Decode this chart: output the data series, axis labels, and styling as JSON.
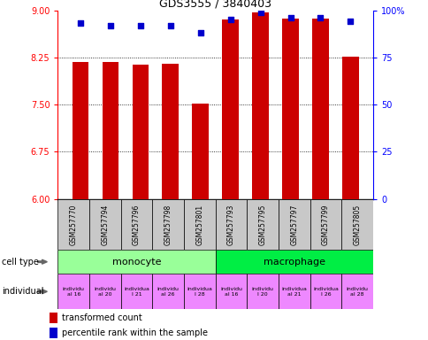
{
  "title": "GDS3555 / 3840403",
  "samples": [
    "GSM257770",
    "GSM257794",
    "GSM257796",
    "GSM257798",
    "GSM257801",
    "GSM257793",
    "GSM257795",
    "GSM257797",
    "GSM257799",
    "GSM257805"
  ],
  "bar_values": [
    8.17,
    8.17,
    8.14,
    8.15,
    7.52,
    8.85,
    8.97,
    8.87,
    8.87,
    8.26
  ],
  "dot_values": [
    93,
    92,
    92,
    92,
    88,
    95,
    99,
    96,
    96,
    94
  ],
  "ylim_left": [
    6,
    9
  ],
  "ylim_right": [
    0,
    100
  ],
  "yticks_left": [
    6,
    6.75,
    7.5,
    8.25,
    9
  ],
  "yticks_right": [
    0,
    25,
    50,
    75,
    100
  ],
  "bar_color": "#cc0000",
  "dot_color": "#0000cc",
  "cell_type_monocyte_color": "#99ff99",
  "cell_type_macrophage_color": "#00ee44",
  "individual_color": "#ee88ff",
  "xlabel_area_color": "#c8c8c8",
  "legend_bar_label": "transformed count",
  "legend_dot_label": "percentile rank within the sample",
  "arrow_color": "#666666",
  "individuals_display": [
    "individu\nal 16",
    "individu\nal 20",
    "individua\nl 21",
    "individu\nal 26",
    "individua\nl 28",
    "individu\nal 16",
    "individu\nl 20",
    "individua\nal 21",
    "individua\nl 26",
    "individu\nal 28"
  ]
}
